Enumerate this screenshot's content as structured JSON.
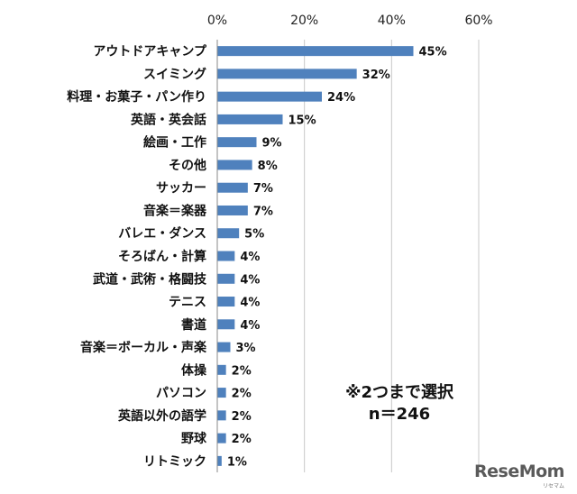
{
  "chart_data": {
    "type": "bar",
    "orientation": "horizontal",
    "xlim": [
      0,
      60
    ],
    "ticks": [
      "0%",
      "20%",
      "40%",
      "60%"
    ],
    "tick_values": [
      0,
      20,
      40,
      60
    ],
    "grid": true,
    "bar_color": "#4f81bd",
    "categories": [
      "アウトドアキャンプ",
      "スイミング",
      "料理・お菓子・パン作り",
      "英語・英会話",
      "絵画・工作",
      "その他",
      "サッカー",
      "音楽＝楽器",
      "バレエ・ダンス",
      "そろばん・計算",
      "武道・武術・格闘技",
      "テニス",
      "書道",
      "音楽＝ボーカル・声楽",
      "体操",
      "パソコン",
      "英語以外の語学",
      "野球",
      "リトミック"
    ],
    "values": [
      45,
      32,
      24,
      15,
      9,
      8,
      7,
      7,
      5,
      4,
      4,
      4,
      4,
      3,
      2,
      2,
      2,
      2,
      1
    ],
    "value_labels": [
      "45%",
      "32%",
      "24%",
      "15%",
      "9%",
      "8%",
      "7%",
      "7%",
      "5%",
      "4%",
      "4%",
      "4%",
      "4%",
      "3%",
      "2%",
      "2%",
      "2%",
      "2%",
      "1%"
    ]
  },
  "annotation": {
    "line1": "※2つまで選択",
    "line2": "n＝246"
  },
  "watermark": {
    "logo": "ReseMom",
    "sub": "リセマム"
  }
}
